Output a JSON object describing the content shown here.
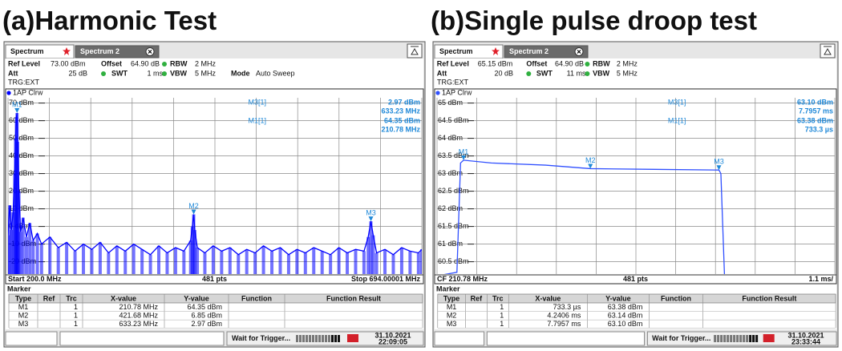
{
  "chart_data": [
    {
      "type": "line",
      "title": "(a)Harmonic Test",
      "trace_label": "1AP Clrw",
      "color": "#0000ff",
      "fill": true,
      "grid": true,
      "x": [
        200,
        202,
        204,
        206,
        208,
        209,
        210,
        210.78,
        211.5,
        213,
        215,
        218,
        222,
        226,
        230,
        235,
        240,
        250,
        260,
        270,
        280,
        290,
        300,
        310,
        320,
        330,
        340,
        350,
        360,
        370,
        380,
        390,
        400,
        410,
        418,
        420,
        421.68,
        423,
        426,
        435,
        445,
        455,
        465,
        475,
        485,
        495,
        505,
        515,
        525,
        535,
        545,
        555,
        565,
        575,
        585,
        595,
        605,
        615,
        625,
        630,
        633.23,
        636,
        640,
        650,
        660,
        670,
        680,
        690,
        694
      ],
      "values": [
        -5,
        12,
        -2,
        8,
        30,
        50,
        62,
        64.35,
        48,
        20,
        -3,
        5,
        -6,
        2,
        -8,
        -4,
        -10,
        -6,
        -12,
        -9,
        -14,
        -10,
        -13,
        -9,
        -15,
        -11,
        -14,
        -10,
        -13,
        -16,
        -11,
        -15,
        -12,
        -14,
        -8,
        0,
        6.85,
        -2,
        -12,
        -15,
        -11,
        -14,
        -12,
        -16,
        -13,
        -15,
        -11,
        -14,
        -12,
        -16,
        -13,
        -15,
        -12,
        -14,
        -16,
        -12,
        -15,
        -13,
        -14,
        -6,
        2.97,
        -5,
        -15,
        -13,
        -16,
        -12,
        -14,
        -15,
        -13
      ],
      "xlim": [
        200,
        694.00001
      ],
      "xticks": [
        200,
        249.4,
        298.8,
        348.2,
        397.6,
        447,
        496.4,
        545.8,
        595.2,
        644.6,
        694.00001
      ],
      "ylim": [
        -27,
        73
      ],
      "yticks": [
        {
          "value": 70,
          "label": "70 dBm"
        },
        {
          "value": 60,
          "label": "60 dBm"
        },
        {
          "value": 50,
          "label": "50 dBm"
        },
        {
          "value": 40,
          "label": "40 dBm"
        },
        {
          "value": 30,
          "label": "30 dBm"
        },
        {
          "value": 20,
          "label": "20 dBm"
        },
        {
          "value": 10,
          "label": "10 dBm"
        },
        {
          "value": 0,
          "label": "0 dBm"
        },
        {
          "value": -10,
          "label": "-10 dBm"
        },
        {
          "value": -20,
          "label": "-20 dBm"
        }
      ],
      "markers": [
        {
          "name": "M1",
          "trace": 1,
          "x": 210.78,
          "y": 64.35,
          "x_label": "210.78 MHz",
          "y_label": "64.35 dBm"
        },
        {
          "name": "M2",
          "trace": 1,
          "x": 421.68,
          "y": 6.85,
          "x_label": "421.68 MHz",
          "y_label": "6.85 dBm"
        },
        {
          "name": "M3",
          "trace": 1,
          "x": 633.23,
          "y": 2.97,
          "x_label": "633.23 MHz",
          "y_label": "2.97 dBm"
        }
      ],
      "readouts": [
        {
          "label": "M3[1]",
          "y_label": "2.97 dBm",
          "x_label": "633.23 MHz"
        },
        {
          "label": "M1[1]",
          "y_label": "64.35 dBm",
          "x_label": "210.78 MHz"
        }
      ]
    },
    {
      "type": "line",
      "title": "(b)Single pulse droop test",
      "trace_label": "1AP Clrw",
      "color": "#3050ff",
      "fill": false,
      "grid": true,
      "x": [
        0,
        0.55,
        0.65,
        0.7333,
        1.5,
        3,
        4.2406,
        6,
        7.7957,
        7.85,
        7.95,
        11
      ],
      "values": [
        60.1,
        60.2,
        63.3,
        63.38,
        63.3,
        63.24,
        63.14,
        63.12,
        63.1,
        63.0,
        60.1,
        60.1
      ],
      "xlim": [
        0,
        11
      ],
      "xticks": [
        0,
        1.1,
        2.2,
        3.3,
        4.4,
        5.5,
        6.6,
        7.7,
        8.8,
        9.9,
        11
      ],
      "ylim": [
        60.15,
        65.15
      ],
      "yticks": [
        {
          "value": 65,
          "label": "65 dBm"
        },
        {
          "value": 64.5,
          "label": "64.5 dBm"
        },
        {
          "value": 64,
          "label": "64 dBm"
        },
        {
          "value": 63.5,
          "label": "63.5 dBm"
        },
        {
          "value": 63,
          "label": "63 dBm"
        },
        {
          "value": 62.5,
          "label": "62.5 dBm"
        },
        {
          "value": 62,
          "label": "62 dBm"
        },
        {
          "value": 61.5,
          "label": "61.5 dBm"
        },
        {
          "value": 61,
          "label": "61 dBm"
        },
        {
          "value": 60.5,
          "label": "60.5 dBm"
        }
      ],
      "markers": [
        {
          "name": "M1",
          "trace": 1,
          "x": 0.7333,
          "y": 63.38,
          "x_label": "733.3 µs",
          "y_label": "63.38 dBm"
        },
        {
          "name": "M2",
          "trace": 1,
          "x": 4.2406,
          "y": 63.14,
          "x_label": "4.2406 ms",
          "y_label": "63.14 dBm"
        },
        {
          "name": "M3",
          "trace": 1,
          "x": 7.7957,
          "y": 63.1,
          "x_label": "7.7957 ms",
          "y_label": "63.10 dBm"
        }
      ],
      "readouts": [
        {
          "label": "M3[1]",
          "y_label": "63.10 dBm",
          "x_label": "7.7957 ms"
        },
        {
          "label": "M1[1]",
          "y_label": "63.38 dBm",
          "x_label": "733.3 µs"
        }
      ]
    }
  ],
  "panels": [
    {
      "tabs": [
        "Spectrum",
        "Spectrum 2"
      ],
      "settings": {
        "ref_level": {
          "label": "Ref Level",
          "value": "73.00 dBm"
        },
        "offset": {
          "label": "Offset",
          "value": "64.90 dB"
        },
        "rbw": {
          "label": "RBW",
          "value": "2 MHz"
        },
        "att": {
          "label": "Att",
          "value": "25 dB"
        },
        "swt": {
          "label": "SWT",
          "value": "1 ms"
        },
        "vbw": {
          "label": "VBW",
          "value": "5 MHz"
        },
        "mode": {
          "label": "Mode",
          "value": "Auto Sweep"
        }
      },
      "trigger": "TRG:EXT",
      "footer": {
        "left": "Start 200.0 MHz",
        "center": "481 pts",
        "right": "Stop 694.00001 MHz"
      },
      "marker_title": "Marker",
      "columns": [
        "Type",
        "Ref",
        "Trc",
        "X-value",
        "Y-value",
        "Function",
        "Function Result"
      ],
      "status": "Wait for Trigger...",
      "date": "31.10.2021",
      "time": "22:09:05"
    },
    {
      "tabs": [
        "Spectrum",
        "Spectrum 2"
      ],
      "settings": {
        "ref_level": {
          "label": "Ref Level",
          "value": "65.15 dBm"
        },
        "offset": {
          "label": "Offset",
          "value": "64.90 dB"
        },
        "rbw": {
          "label": "RBW",
          "value": "2 MHz"
        },
        "att": {
          "label": "Att",
          "value": "20 dB"
        },
        "swt": {
          "label": "SWT",
          "value": "11 ms"
        },
        "vbw": {
          "label": "VBW",
          "value": "5 MHz"
        }
      },
      "trigger": "TRG:EXT",
      "footer": {
        "left": "CF 210.78 MHz",
        "center": "481 pts",
        "right": "1.1 ms/"
      },
      "marker_title": "Marker",
      "columns": [
        "Type",
        "Ref",
        "Trc",
        "X-value",
        "Y-value",
        "Function",
        "Function Result"
      ],
      "status": "Wait for Trigger...",
      "date": "31.10.2021",
      "time": "23:33:44"
    }
  ]
}
